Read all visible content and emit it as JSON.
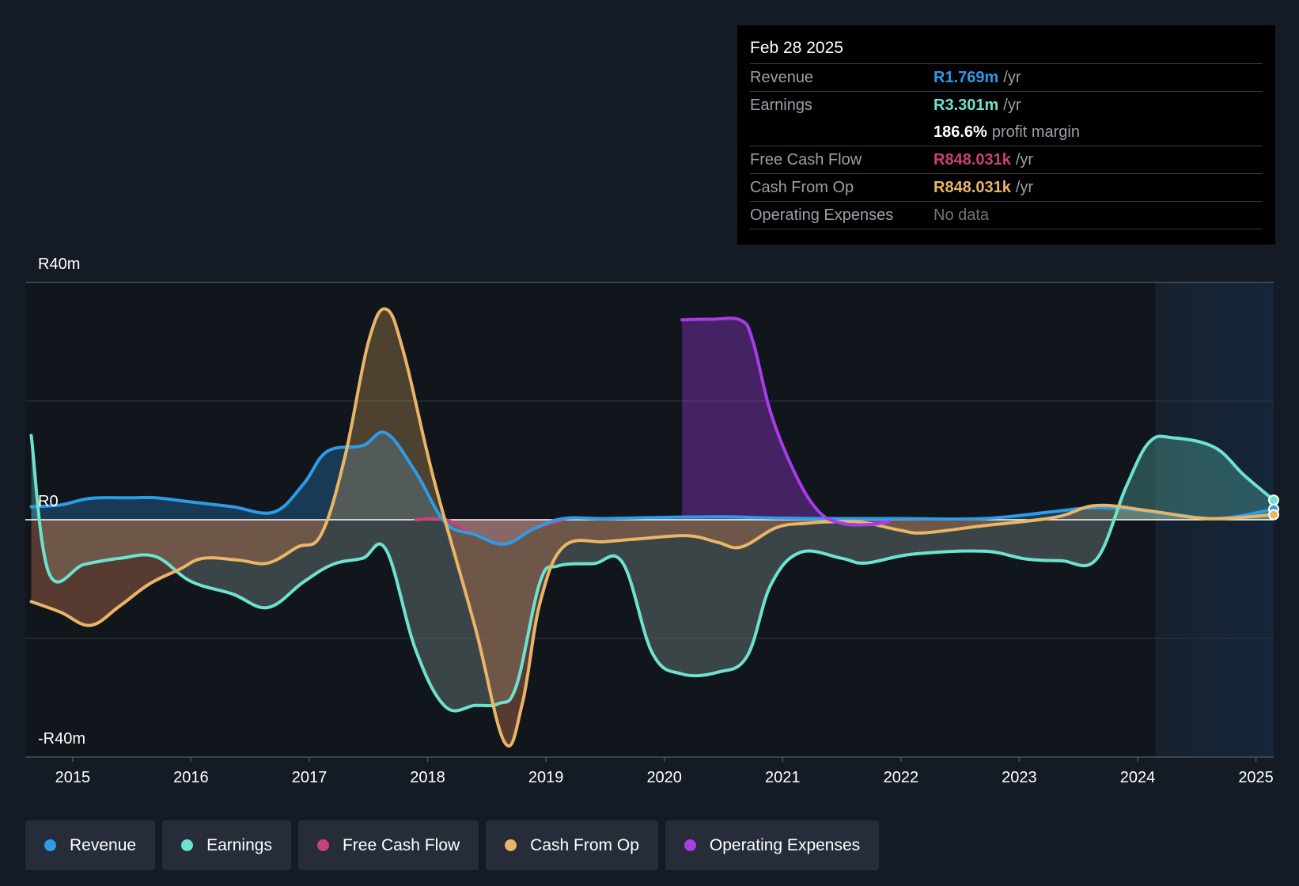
{
  "tooltip": {
    "date": "Feb 28 2025",
    "rows": {
      "revenue": {
        "label": "Revenue",
        "value": "R1.769m",
        "unit": "/yr"
      },
      "earnings": {
        "label": "Earnings",
        "value": "R3.301m",
        "unit": "/yr"
      },
      "margin": {
        "value": "186.6%",
        "unit": "profit margin"
      },
      "fcf": {
        "label": "Free Cash Flow",
        "value": "R848.031k",
        "unit": "/yr"
      },
      "cfo": {
        "label": "Cash From Op",
        "value": "R848.031k",
        "unit": "/yr"
      },
      "opex": {
        "label": "Operating Expenses",
        "value": "No data"
      }
    }
  },
  "legend": [
    {
      "name": "Revenue",
      "color": "#2e9be8"
    },
    {
      "name": "Earnings",
      "color": "#6de3cf"
    },
    {
      "name": "Free Cash Flow",
      "color": "#c7427a"
    },
    {
      "name": "Cash From Op",
      "color": "#e9b566"
    },
    {
      "name": "Operating Expenses",
      "color": "#a73de8"
    }
  ],
  "colors": {
    "revenue": "#2e9be8",
    "earnings": "#6de3cf",
    "fcf": "#c7427a",
    "cfo": "#e9b566",
    "opex": "#a73de8"
  },
  "chart_data": {
    "type": "line",
    "title": "",
    "xlabel": "",
    "ylabel": "",
    "y_tick_labels": {
      "top": "R40m",
      "zero": "R0",
      "bottom": "-R40m"
    },
    "ylim": [
      -40,
      40
    ],
    "y_units": "R millions",
    "xlim": [
      2014.6,
      2025.15
    ],
    "x_ticks": [
      2015,
      2016,
      2017,
      2018,
      2019,
      2020,
      2021,
      2022,
      2023,
      2024,
      2025
    ],
    "x_tick_labels": [
      "2015",
      "2016",
      "2017",
      "2018",
      "2019",
      "2020",
      "2021",
      "2022",
      "2023",
      "2024",
      "2025"
    ],
    "highlight_range": [
      2024.15,
      2025.15
    ],
    "series": [
      {
        "name": "Revenue",
        "key": "revenue",
        "x": [
          2014.65,
          2014.9,
          2015.15,
          2015.5,
          2015.7,
          2016.0,
          2016.35,
          2016.7,
          2016.95,
          2017.15,
          2017.45,
          2017.65,
          2017.9,
          2018.15,
          2018.4,
          2018.65,
          2018.9,
          2019.15,
          2019.5,
          2020.0,
          2020.5,
          2020.9,
          2021.5,
          2022.0,
          2022.7,
          2023.3,
          2023.6,
          2023.9,
          2024.3,
          2024.7,
          2025.15
        ],
        "values": [
          2.2,
          2.5,
          3.6,
          3.7,
          3.7,
          3.0,
          2.2,
          1.3,
          6,
          11.5,
          12.5,
          14.6,
          8,
          -0.5,
          -2.5,
          -4.1,
          -1.5,
          0.2,
          0.2,
          0.4,
          0.5,
          0.3,
          0.2,
          0.2,
          0.2,
          1.4,
          2.0,
          1.8,
          0.9,
          0.2,
          1.769
        ]
      },
      {
        "name": "Earnings",
        "key": "earnings",
        "x": [
          2014.65,
          2014.8,
          2015.1,
          2015.4,
          2015.7,
          2016.0,
          2016.35,
          2016.65,
          2016.95,
          2017.2,
          2017.45,
          2017.65,
          2017.9,
          2018.15,
          2018.4,
          2018.6,
          2018.75,
          2018.95,
          2019.1,
          2019.4,
          2019.65,
          2019.9,
          2020.15,
          2020.45,
          2020.7,
          2020.9,
          2021.15,
          2021.5,
          2021.7,
          2022.1,
          2022.7,
          2023.05,
          2023.35,
          2023.65,
          2023.9,
          2024.1,
          2024.3,
          2024.65,
          2024.9,
          2025.15
        ],
        "values": [
          14.2,
          -9,
          -7.5,
          -6.5,
          -6.2,
          -10.4,
          -12.5,
          -14.8,
          -10.5,
          -7.5,
          -6.5,
          -5.1,
          -22,
          -31.5,
          -31.3,
          -31,
          -28,
          -10.5,
          -7.8,
          -7.4,
          -7.3,
          -22.5,
          -26,
          -25.7,
          -23,
          -11,
          -5.5,
          -6.5,
          -7.3,
          -5.8,
          -5.3,
          -6.6,
          -6.9,
          -6.7,
          5.4,
          13.1,
          13.8,
          12.2,
          7.5,
          3.301
        ]
      },
      {
        "name": "Free Cash Flow",
        "key": "fcf",
        "x": [
          2017.9,
          2018.15,
          2018.4,
          2018.65,
          2018.9,
          2019.15
        ],
        "values": [
          0,
          0,
          -2.5,
          -4.1,
          -1.5,
          0
        ]
      },
      {
        "name": "Cash From Op",
        "key": "cfo",
        "x": [
          2014.65,
          2014.9,
          2015.15,
          2015.4,
          2015.65,
          2015.9,
          2016.1,
          2016.4,
          2016.65,
          2016.9,
          2017.1,
          2017.3,
          2017.5,
          2017.65,
          2017.8,
          2018.05,
          2018.4,
          2018.65,
          2018.8,
          2018.95,
          2019.15,
          2019.5,
          2019.8,
          2020.2,
          2020.45,
          2020.65,
          2020.95,
          2021.2,
          2021.5,
          2021.7,
          2022.0,
          2022.2,
          2022.7,
          2023.3,
          2023.65,
          2024.1,
          2024.6,
          2025.15
        ],
        "values": [
          -13.8,
          -15.6,
          -17.8,
          -14.5,
          -10.8,
          -8.4,
          -6.5,
          -6.8,
          -7.3,
          -4.6,
          -2.5,
          10.5,
          30,
          35.5,
          28,
          7,
          -18,
          -37.5,
          -31,
          -14,
          -4.5,
          -3.7,
          -3.2,
          -2.7,
          -3.8,
          -4.6,
          -1.3,
          -0.6,
          -0.3,
          -0.5,
          -1.8,
          -2.2,
          -1.0,
          0.4,
          2.4,
          1.5,
          0.2,
          0.848
        ]
      },
      {
        "name": "Operating Expenses",
        "key": "opex",
        "x": [
          2020.15,
          2020.4,
          2020.65,
          2020.75,
          2020.9,
          2021.1,
          2021.3,
          2021.5,
          2021.75,
          2021.9
        ],
        "values": [
          33.7,
          33.8,
          33.6,
          30,
          18,
          8,
          1.5,
          -0.6,
          -0.8,
          -0.3
        ]
      }
    ]
  }
}
